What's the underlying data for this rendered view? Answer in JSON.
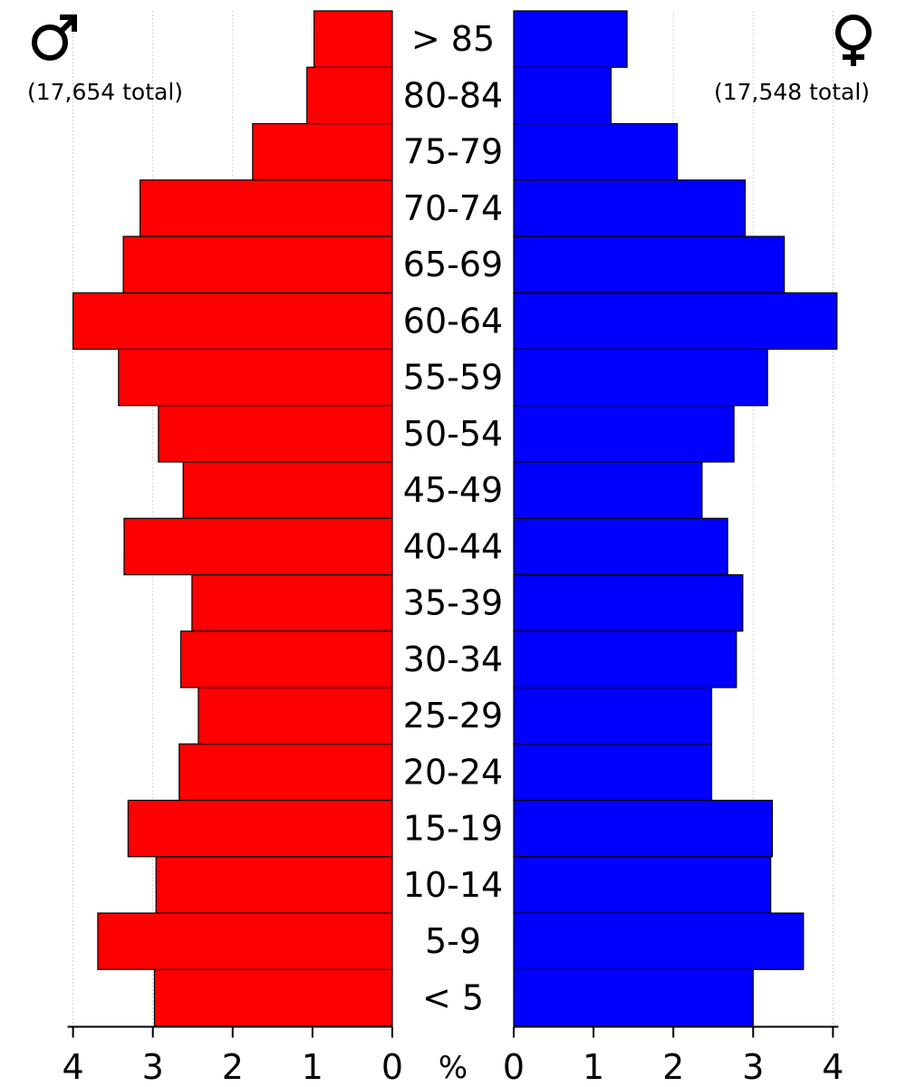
{
  "chart_data": {
    "type": "bar",
    "categories": [
      "< 5",
      "5-9",
      "10-14",
      "15-19",
      "20-24",
      "25-29",
      "30-34",
      "35-39",
      "40-44",
      "45-49",
      "50-54",
      "55-59",
      "60-64",
      "65-69",
      "70-74",
      "75-79",
      "80-84",
      "> 85"
    ],
    "series": [
      {
        "name": "male",
        "color": "#ff0000",
        "total": "(17,654 total)",
        "symbol": "male-symbol",
        "values": [
          2.98,
          3.69,
          2.96,
          3.31,
          2.67,
          2.43,
          2.65,
          2.51,
          3.36,
          2.62,
          2.93,
          3.43,
          4.0,
          3.37,
          3.16,
          1.75,
          1.07,
          0.98
        ]
      },
      {
        "name": "female",
        "color": "#0000ff",
        "total": "(17,548 total)",
        "symbol": "female-symbol",
        "values": [
          3.0,
          3.63,
          3.22,
          3.24,
          2.48,
          2.48,
          2.79,
          2.87,
          2.68,
          2.36,
          2.76,
          3.18,
          4.05,
          3.39,
          2.9,
          2.05,
          1.22,
          1.42
        ]
      }
    ],
    "xlim": [
      0,
      4
    ],
    "xticks": [
      "0",
      "1",
      "2",
      "3",
      "4"
    ],
    "unit": "%",
    "grid": true
  }
}
